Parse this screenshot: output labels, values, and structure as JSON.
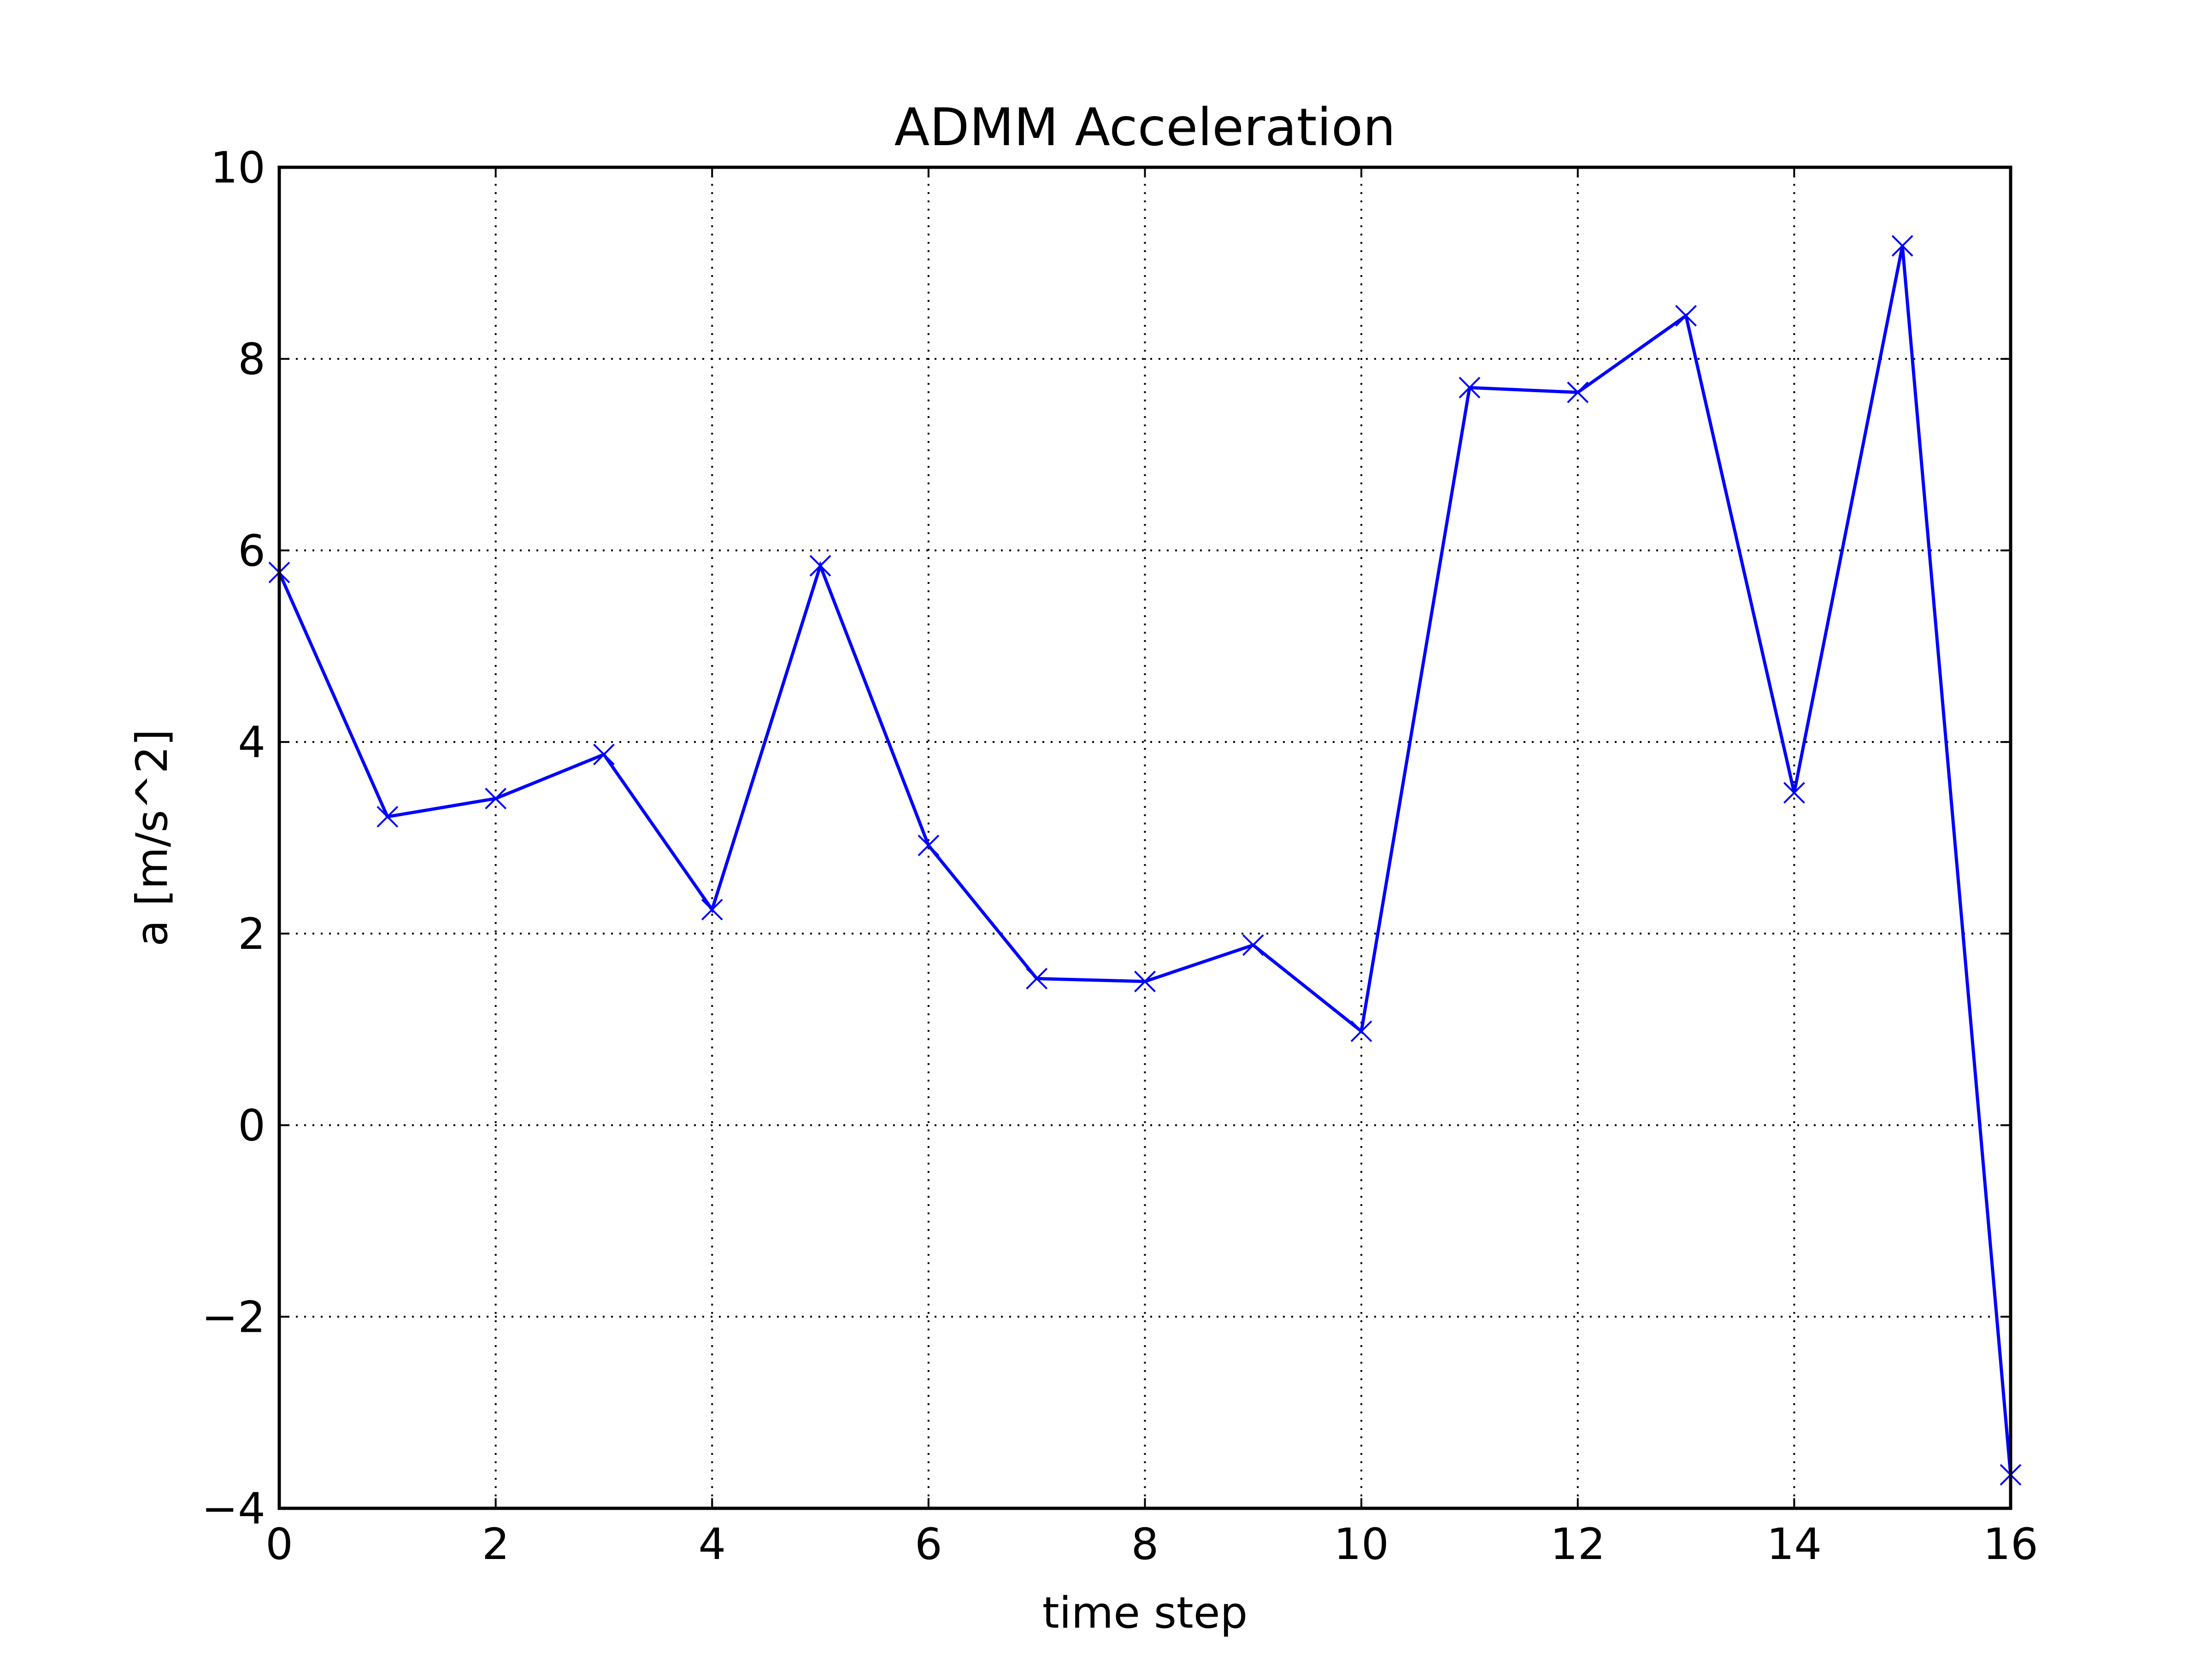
{
  "chart_data": {
    "type": "line",
    "title": "ADMM Acceleration",
    "xlabel": "time step",
    "ylabel": "a [m/s^2]",
    "xlim": [
      0,
      16
    ],
    "ylim": [
      -4,
      10
    ],
    "xticks": [
      0,
      2,
      4,
      6,
      8,
      10,
      12,
      14,
      16
    ],
    "yticks": [
      -4,
      -2,
      0,
      2,
      4,
      6,
      8,
      10
    ],
    "xtick_labels": [
      "0",
      "2",
      "4",
      "6",
      "8",
      "10",
      "12",
      "14",
      "16"
    ],
    "ytick_labels": [
      "−4",
      "−2",
      "0",
      "2",
      "4",
      "6",
      "8",
      "10"
    ],
    "grid": true,
    "series": [
      {
        "color": "#0000ff",
        "marker": "x",
        "x": [
          0,
          1,
          2,
          3,
          4,
          5,
          6,
          7,
          8,
          9,
          10,
          11,
          12,
          13,
          14,
          15,
          16
        ],
        "y": [
          5.77,
          3.22,
          3.41,
          3.87,
          2.25,
          5.84,
          2.92,
          1.53,
          1.5,
          1.88,
          0.98,
          7.7,
          7.65,
          8.45,
          3.47,
          9.18,
          -3.65
        ]
      }
    ]
  }
}
